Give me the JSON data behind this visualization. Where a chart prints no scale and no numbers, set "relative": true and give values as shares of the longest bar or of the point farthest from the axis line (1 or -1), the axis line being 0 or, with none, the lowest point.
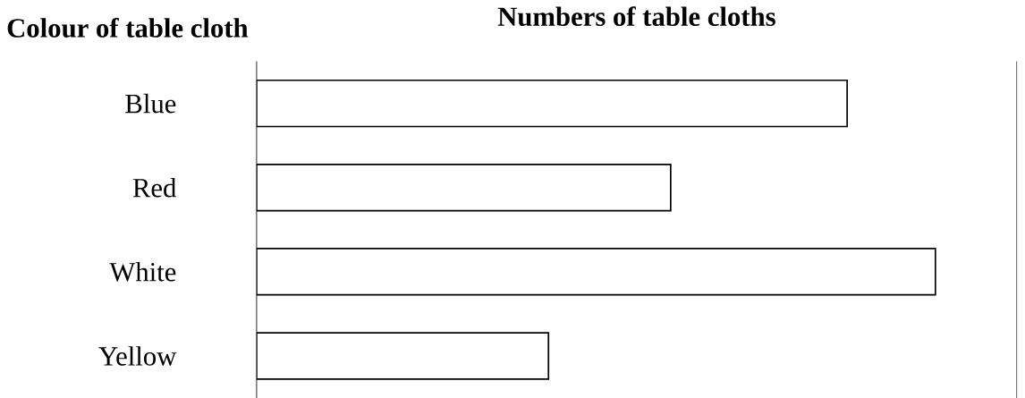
{
  "chart_data": {
    "type": "bar",
    "orientation": "horizontal",
    "relative": true,
    "title": "Numbers of table cloths",
    "ylabel": "Colour of table cloth",
    "categories": [
      "Blue",
      "Red",
      "White",
      "Yellow"
    ],
    "values": [
      0.87,
      0.61,
      1,
      0.43
    ],
    "color": "#ffffff"
  }
}
